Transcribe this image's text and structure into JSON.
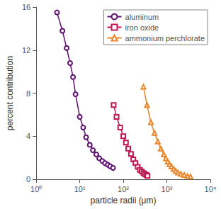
{
  "chart_data": {
    "type": "line",
    "xlabel": "particle radii (μm)",
    "ylabel": "percent contribution",
    "log": "x",
    "xlim": [
      1,
      10000
    ],
    "xticks": [
      {
        "value": 1,
        "label": "10⁰"
      },
      {
        "value": 10,
        "label": "10¹"
      },
      {
        "value": 100,
        "label": "10²"
      },
      {
        "value": 1000,
        "label": "10³"
      },
      {
        "value": 10000,
        "label": "10⁴"
      }
    ],
    "ylim": [
      0,
      16
    ],
    "yticks": [
      0,
      4,
      8,
      12,
      16
    ],
    "grid": false,
    "legend": "upper right",
    "series": [
      {
        "name": "aluminum",
        "color": "#5c1070",
        "marker": "circle",
        "x": [
          3.0,
          4.0,
          5.0,
          6.0,
          7.0,
          8.0,
          10.0,
          12.0,
          14.0,
          17.0,
          20.0,
          24.0,
          28.0,
          33.0,
          38.0,
          44.0,
          50.0,
          58.0
        ],
        "values": [
          15.5,
          13.8,
          12.2,
          10.8,
          9.5,
          7.9,
          5.8,
          4.8,
          3.9,
          3.2,
          2.7,
          2.3,
          1.95,
          1.7,
          1.5,
          1.35,
          1.2,
          1.05
        ]
      },
      {
        "name": "iron oxide",
        "color": "#c01850",
        "marker": "square",
        "x": [
          60,
          70,
          85,
          100,
          115,
          130,
          150,
          170,
          190,
          215,
          240,
          265,
          290,
          315,
          340,
          360
        ],
        "values": [
          6.9,
          5.8,
          4.8,
          4.0,
          3.4,
          2.85,
          2.35,
          1.85,
          1.5,
          1.15,
          0.88,
          0.72,
          0.58,
          0.48,
          0.4,
          0.32
        ]
      },
      {
        "name": "ammonium perchlorate",
        "color": "#e8852a",
        "marker": "triangle",
        "x": [
          290,
          350,
          430,
          520,
          620,
          730,
          850,
          950,
          1050,
          1150,
          1280,
          1430,
          1600,
          1800,
          2100,
          2500,
          3000,
          3500
        ],
        "values": [
          8.6,
          6.9,
          5.3,
          4.3,
          3.5,
          2.85,
          2.3,
          1.95,
          1.65,
          1.4,
          1.18,
          0.95,
          0.78,
          0.62,
          0.5,
          0.4,
          0.3,
          0.25
        ]
      }
    ]
  }
}
